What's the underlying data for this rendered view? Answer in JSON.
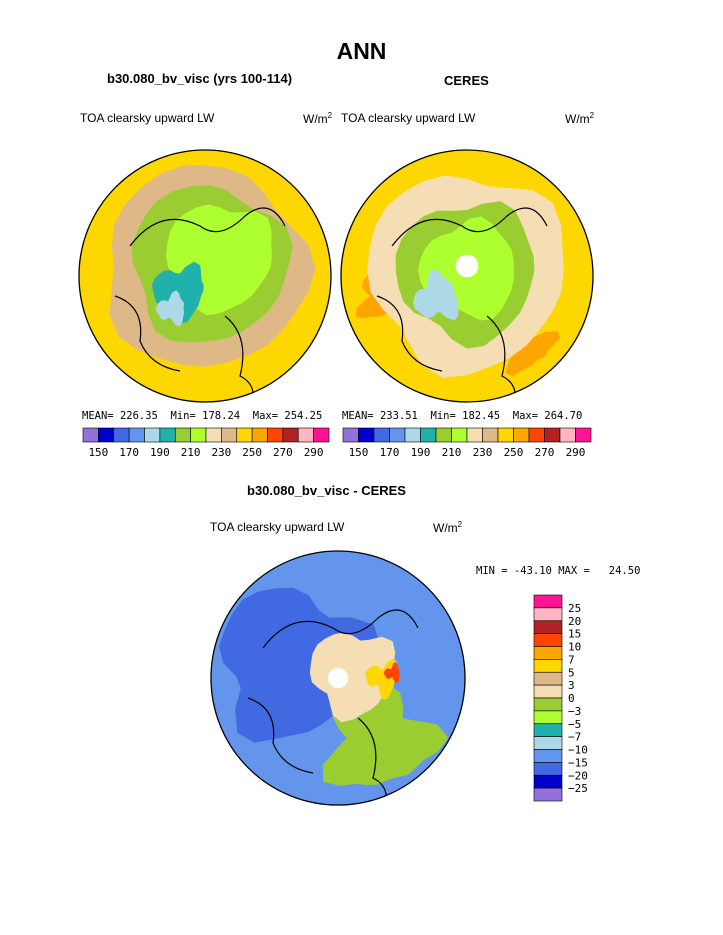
{
  "figure": {
    "title": "ANN"
  },
  "panels": [
    {
      "title": "b30.080_bv_visc (yrs 100-114)",
      "variable": "TOA clearsky upward LW",
      "units": "W/m",
      "units_exp": "2",
      "stats": {
        "mean_label": "MEAN=",
        "mean": "226.35",
        "min_label": "Min=",
        "min": "178.24",
        "max_label": "Max=",
        "max": "254.25"
      }
    },
    {
      "title": "CERES",
      "variable": "TOA clearsky upward LW",
      "units": "W/m",
      "units_exp": "2",
      "stats": {
        "mean_label": "MEAN=",
        "mean": "233.51",
        "min_label": "Min=",
        "min": "182.45",
        "max_label": "Max=",
        "max": "264.70"
      }
    },
    {
      "title": "b30.080_bv_visc - CERES",
      "variable": "TOA clearsky upward LW",
      "units": "W/m",
      "units_exp": "2",
      "stats": {
        "min_label": "MIN =",
        "min": "-43.10",
        "max_label": "MAX =",
        "max": "24.50"
      }
    }
  ],
  "chart_data": [
    {
      "type": "heatmap",
      "projection": "polar-stereographic-north",
      "title": "b30.080_bv_visc (yrs 100-114)",
      "variable": "TOA clearsky upward LW",
      "units": "W/m2",
      "stats": {
        "mean": 226.35,
        "min": 178.24,
        "max": 254.25
      },
      "colorbar": {
        "orientation": "horizontal",
        "levels": [
          150,
          160,
          170,
          180,
          190,
          200,
          210,
          220,
          230,
          240,
          250,
          260,
          270,
          280,
          290
        ],
        "tick_labels": [
          "150",
          "170",
          "190",
          "210",
          "230",
          "250",
          "270",
          "290"
        ],
        "colors": [
          "#9370db",
          "#0000cd",
          "#4169e1",
          "#6495ed",
          "#add8e6",
          "#20b2aa",
          "#9acd32",
          "#adff2f",
          "#f5deb3",
          "#deb887",
          "#ffd700",
          "#ffa500",
          "#ff4500",
          "#b22222",
          "#ffb6c1",
          "#ff1493"
        ]
      },
      "regions": [
        {
          "region": "Arctic Ocean interior",
          "color_index": 7
        },
        {
          "region": "Siberia / Canadian archipelago",
          "color_index": 6
        },
        {
          "region": "Greenland ice sheet center",
          "color_index": 4
        },
        {
          "region": "Greenland margins",
          "color_index": 5
        },
        {
          "region": "subarctic land",
          "color_index": 9
        },
        {
          "region": "mid-latitude ocean rim",
          "color_index": 10
        }
      ]
    },
    {
      "type": "heatmap",
      "projection": "polar-stereographic-north",
      "title": "CERES",
      "variable": "TOA clearsky upward LW",
      "units": "W/m2",
      "stats": {
        "mean": 233.51,
        "min": 182.45,
        "max": 264.7
      },
      "colorbar": {
        "orientation": "horizontal",
        "levels": [
          150,
          160,
          170,
          180,
          190,
          200,
          210,
          220,
          230,
          240,
          250,
          260,
          270,
          280,
          290
        ],
        "tick_labels": [
          "150",
          "170",
          "190",
          "210",
          "230",
          "250",
          "270",
          "290"
        ],
        "colors": [
          "#9370db",
          "#0000cd",
          "#4169e1",
          "#6495ed",
          "#add8e6",
          "#20b2aa",
          "#9acd32",
          "#adff2f",
          "#f5deb3",
          "#deb887",
          "#ffd700",
          "#ffa500",
          "#ff4500",
          "#b22222",
          "#ffb6c1",
          "#ff1493"
        ]
      },
      "regions": [
        {
          "region": "pole (missing data)",
          "color_index": -1
        },
        {
          "region": "Arctic Ocean interior",
          "color_index": 7
        },
        {
          "region": "Siberia ring",
          "color_index": 6
        },
        {
          "region": "Greenland ice sheet center",
          "color_index": 4
        },
        {
          "region": "subarctic land",
          "color_index": 8
        },
        {
          "region": "mid-latitude rim",
          "color_index": 10
        },
        {
          "region": "warm ocean patches",
          "color_index": 11
        }
      ]
    },
    {
      "type": "heatmap",
      "projection": "polar-stereographic-north",
      "title": "b30.080_bv_visc - CERES",
      "variable": "TOA clearsky upward LW",
      "units": "W/m2",
      "stats": {
        "min": -43.1,
        "max": 24.5
      },
      "colorbar": {
        "orientation": "vertical",
        "tick_labels": [
          "25",
          "20",
          "15",
          "10",
          "7",
          "5",
          "3",
          "0",
          "-3",
          "-5",
          "-7",
          "-10",
          "-15",
          "-20",
          "-25"
        ],
        "colors": [
          "#ff1493",
          "#ffb6c1",
          "#b22222",
          "#ff4500",
          "#ffa500",
          "#ffd700",
          "#deb887",
          "#f5deb3",
          "#9acd32",
          "#adff2f",
          "#20b2aa",
          "#add8e6",
          "#6495ed",
          "#4169e1",
          "#0000cd",
          "#9370db"
        ]
      },
      "regions": [
        {
          "region": "pole (missing data)",
          "color_index": -1
        },
        {
          "region": "central Arctic",
          "color_index": 7
        },
        {
          "region": "Siberian sector",
          "color_index": 5
        },
        {
          "region": "Canada / North America land",
          "color_index": 13
        },
        {
          "region": "North Atlantic / Europe",
          "color_index": 12
        },
        {
          "region": "Pacific sector",
          "color_index": 8
        },
        {
          "region": "northern Asia hotspot",
          "color_index": 3
        }
      ]
    }
  ]
}
